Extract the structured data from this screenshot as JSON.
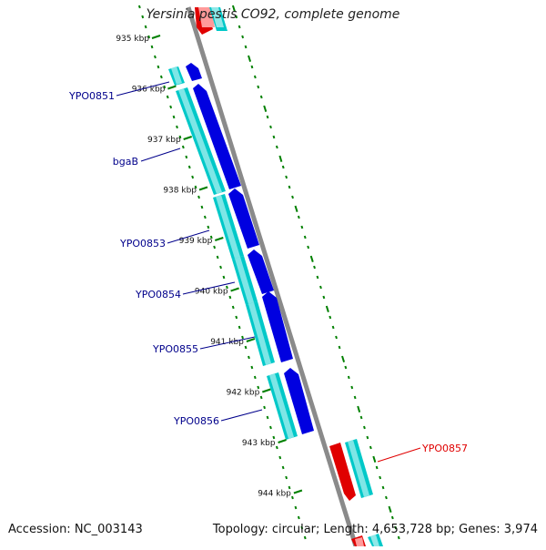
{
  "title": "Yersinia pestis CO92, complete genome",
  "footer": {
    "accession": "Accession: NC_003143",
    "summary": "Topology: circular; Length: 4,653,728 bp; Genes: 3,974"
  },
  "scale_ticks": [
    "935 kbp",
    "936 kbp",
    "937 kbp",
    "938 kbp",
    "939 kbp",
    "940 kbp",
    "941 kbp",
    "942 kbp",
    "943 kbp",
    "944 kbp"
  ],
  "genes": [
    {
      "name": "YPO0851",
      "color": "#00008b"
    },
    {
      "name": "bgaB",
      "color": "#00008b"
    },
    {
      "name": "YPO0853",
      "color": "#00008b"
    },
    {
      "name": "YPO0854",
      "color": "#00008b"
    },
    {
      "name": "YPO0855",
      "color": "#00008b"
    },
    {
      "name": "YPO0856",
      "color": "#00008b"
    },
    {
      "name": "YPO0857",
      "color": "#e00000"
    }
  ],
  "colors": {
    "forward_cds": "#0000e0",
    "forward_gene": "#00c8c8",
    "reverse_cds": "#e00000",
    "reverse_gene": "#00c8c8",
    "backbone": "#808080",
    "tick_dots": "#008000",
    "label_forward": "#00008b",
    "label_reverse": "#e00000"
  }
}
